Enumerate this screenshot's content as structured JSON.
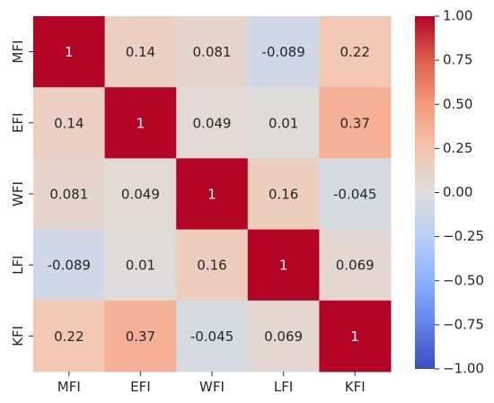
{
  "chart_data": {
    "type": "heatmap",
    "title": "",
    "xlabel": "",
    "ylabel": "",
    "x_categories": [
      "MFI",
      "EFI",
      "WFI",
      "LFI",
      "KFI"
    ],
    "y_categories": [
      "MFI",
      "EFI",
      "WFI",
      "LFI",
      "KFI"
    ],
    "values": [
      [
        1,
        0.14,
        0.081,
        -0.089,
        0.22
      ],
      [
        0.14,
        1,
        0.049,
        0.01,
        0.37
      ],
      [
        0.081,
        0.049,
        1,
        0.16,
        -0.045
      ],
      [
        -0.089,
        0.01,
        0.16,
        1,
        0.069
      ],
      [
        0.22,
        0.37,
        -0.045,
        0.069,
        1
      ]
    ],
    "cell_labels": [
      [
        "1",
        "0.14",
        "0.081",
        "-0.089",
        "0.22"
      ],
      [
        "0.14",
        "1",
        "0.049",
        "0.01",
        "0.37"
      ],
      [
        "0.081",
        "0.049",
        "1",
        "0.16",
        "-0.045"
      ],
      [
        "-0.089",
        "0.01",
        "0.16",
        "1",
        "0.069"
      ],
      [
        "0.22",
        "0.37",
        "-0.045",
        "0.069",
        "1"
      ]
    ],
    "colormap": "coolwarm",
    "vmin": -1,
    "vmax": 1,
    "colorbar": {
      "ticks": [
        1,
        0.75,
        0.5,
        0.25,
        0,
        -0.25,
        -0.5,
        -0.75,
        -1
      ],
      "tick_labels": [
        "1.00",
        "0.75",
        "0.50",
        "0.25",
        "0.00",
        "−0.25",
        "−0.50",
        "−0.75",
        "−1.00"
      ]
    }
  }
}
